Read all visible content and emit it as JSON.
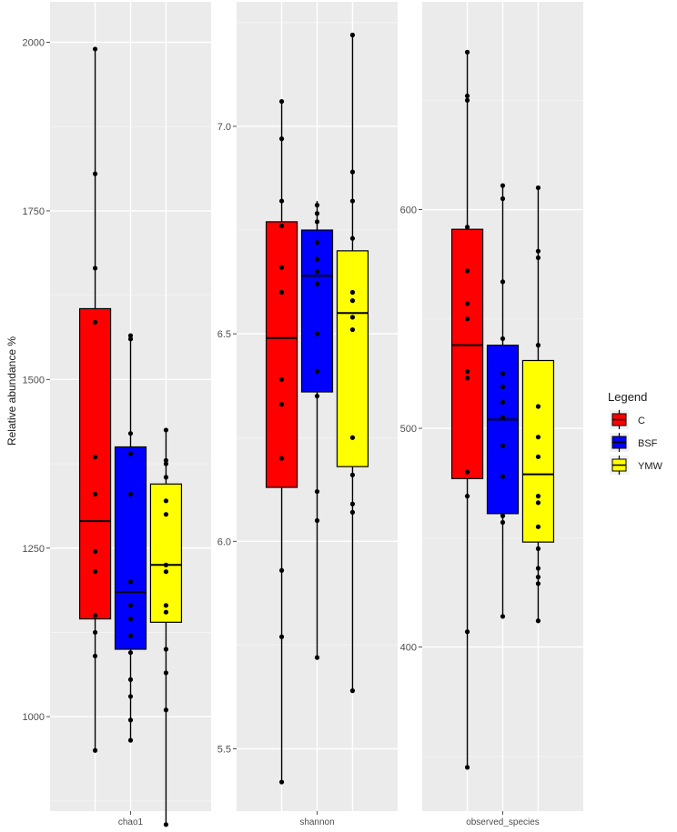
{
  "chart_data": {
    "type": "boxplot",
    "ylabel": "Relative abundance %",
    "legend": {
      "title": "Legend",
      "position": "right",
      "entries": [
        {
          "name": "C",
          "color": "#ff0000"
        },
        {
          "name": "BSF",
          "color": "#0000ff"
        },
        {
          "name": "YMW",
          "color": "#ffff00"
        }
      ]
    },
    "panels": [
      {
        "name": "chao1",
        "ylim": [
          860,
          2060
        ],
        "yticks": [
          1000,
          1250,
          1500,
          1750,
          2000
        ],
        "boxes": [
          {
            "group": "C",
            "min": 950,
            "q1": 1145,
            "median": 1290,
            "q3": 1605,
            "max": 1990,
            "points": [
              950,
              1090,
              1125,
              1150,
              1215,
              1245,
              1330,
              1385,
              1585,
              1665,
              1805,
              1990
            ]
          },
          {
            "group": "BSF",
            "min": 965,
            "q1": 1100,
            "median": 1185,
            "q3": 1400,
            "max": 1565,
            "points": [
              965,
              995,
              1030,
              1055,
              1095,
              1120,
              1145,
              1165,
              1200,
              1330,
              1390,
              1420,
              1560,
              1565
            ]
          },
          {
            "group": "YMW",
            "min": 840,
            "q1": 1140,
            "median": 1225,
            "q3": 1345,
            "max": 1425,
            "points": [
              840,
              1010,
              1065,
              1100,
              1155,
              1165,
              1215,
              1225,
              1300,
              1320,
              1355,
              1375,
              1380,
              1425
            ]
          }
        ]
      },
      {
        "name": "shannon",
        "ylim": [
          5.35,
          7.3
        ],
        "yticks": [
          5.5,
          6.0,
          6.5,
          7.0
        ],
        "boxes": [
          {
            "group": "C",
            "min": 5.42,
            "q1": 6.13,
            "median": 6.49,
            "q3": 6.77,
            "max": 7.06,
            "points": [
              5.42,
              5.77,
              5.93,
              6.2,
              6.33,
              6.39,
              6.6,
              6.66,
              6.76,
              6.82,
              6.97,
              7.06
            ]
          },
          {
            "group": "BSF",
            "min": 5.72,
            "q1": 6.36,
            "median": 6.64,
            "q3": 6.75,
            "max": 6.82,
            "points": [
              5.72,
              6.05,
              6.12,
              6.35,
              6.41,
              6.5,
              6.62,
              6.65,
              6.68,
              6.72,
              6.77,
              6.79,
              6.81
            ]
          },
          {
            "group": "YMW",
            "min": 5.64,
            "q1": 6.18,
            "median": 6.55,
            "q3": 6.7,
            "max": 7.22,
            "points": [
              5.64,
              6.07,
              6.09,
              6.16,
              6.25,
              6.51,
              6.54,
              6.58,
              6.6,
              6.73,
              6.82,
              6.89,
              7.22
            ]
          }
        ]
      },
      {
        "name": "observed_species",
        "ylim": [
          325,
          695
        ],
        "yticks": [
          400,
          500,
          600
        ],
        "boxes": [
          {
            "group": "C",
            "min": 345,
            "q1": 477,
            "median": 538,
            "q3": 591,
            "max": 672,
            "points": [
              345,
              407,
              469,
              480,
              523,
              526,
              550,
              557,
              572,
              592,
              650,
              652,
              672
            ]
          },
          {
            "group": "BSF",
            "min": 414,
            "q1": 461,
            "median": 504,
            "q3": 538,
            "max": 611,
            "points": [
              414,
              457,
              460,
              478,
              492,
              505,
              512,
              519,
              525,
              541,
              567,
              605,
              611
            ]
          },
          {
            "group": "YMW",
            "min": 412,
            "q1": 448,
            "median": 479,
            "q3": 531,
            "max": 610,
            "points": [
              412,
              429,
              432,
              436,
              445,
              455,
              466,
              469,
              487,
              496,
              510,
              538,
              578,
              581,
              610
            ]
          }
        ]
      }
    ]
  }
}
